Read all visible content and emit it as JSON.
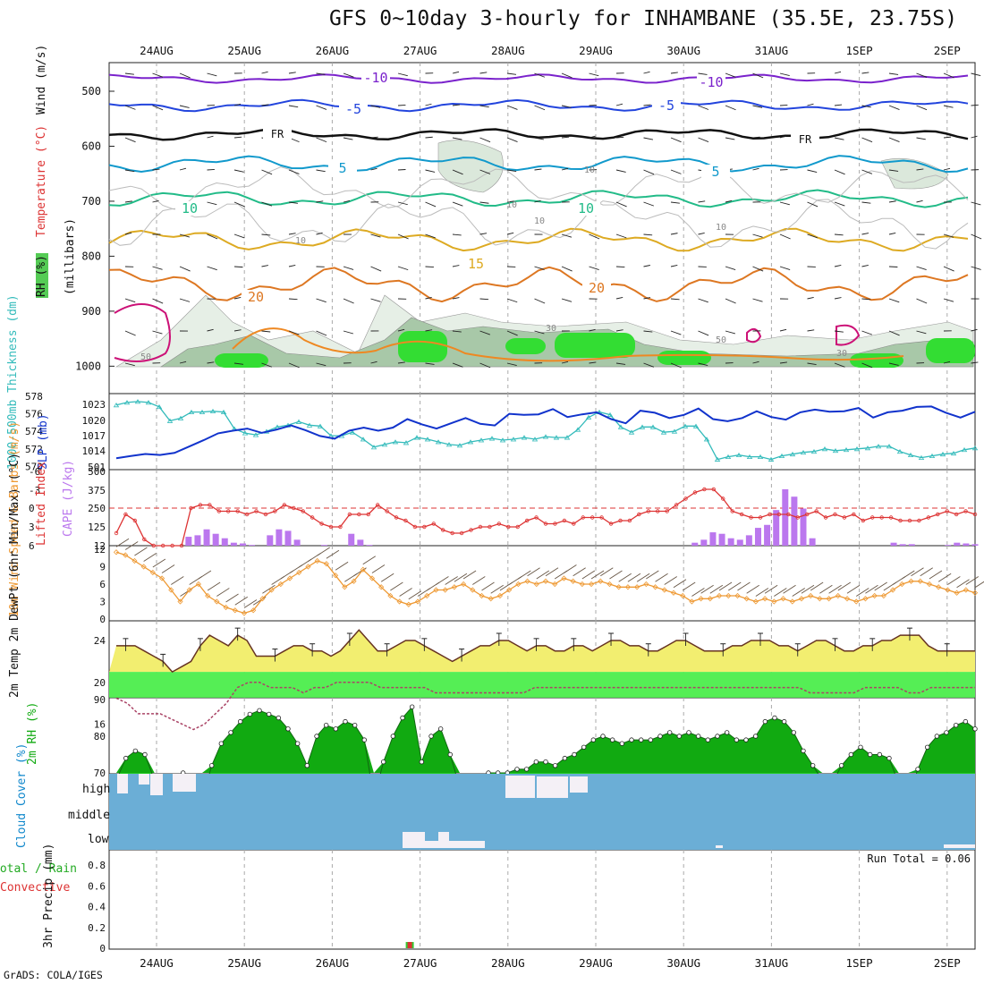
{
  "title": "GFS 0~10day 3-hourly for INHAMBANE (35.5E, 23.75S)",
  "credit": "GrADS: COLA/IGES",
  "dates": [
    "24AUG",
    "25AUG",
    "26AUG",
    "27AUG",
    "28AUG",
    "29AUG",
    "30AUG",
    "31AUG",
    "1SEP",
    "2SEP"
  ],
  "colors": {
    "grid": "#aaaaaa",
    "cyan": "#33bbbb",
    "blue": "#1133cc",
    "cape": "#bb77ee",
    "lift": "#dd3333",
    "wind": "#ee9933",
    "barb": "#665544",
    "tempFill": "#f2ee70",
    "dewLine": "#aa4466",
    "rh": "#22cc22",
    "rhDark": "#11aa11",
    "cloud": "#6baed6",
    "cloudGap": "#f4f0f6"
  },
  "chart_data": [
    {
      "type": "contour",
      "panel": "upper-air",
      "ylabel_parts": [
        "RH (%)",
        "Temperature (°C)",
        "Wind (m/s)",
        "(millibars)"
      ],
      "yticks": [
        "500",
        "600",
        "700",
        "800",
        "900",
        "1000"
      ],
      "contour_labels": [
        {
          "text": "-10",
          "level": "~475mb"
        },
        {
          "text": "-5",
          "level": "~520mb"
        },
        {
          "text": "FR",
          "level": "~570mb"
        },
        {
          "text": "5",
          "level": "~630mb"
        },
        {
          "text": "10",
          "level": "~700mb"
        },
        {
          "text": "15",
          "level": "~790mb"
        },
        {
          "text": "20",
          "level": "~860mb"
        }
      ],
      "gray_labels": [
        "10",
        "10",
        "10",
        "10",
        "10",
        "50",
        "30",
        "50",
        "30"
      ]
    },
    {
      "type": "line",
      "panel": "thickness-slp",
      "ylabel_left": "1000-500mb Thickness (dm)",
      "ylabel_right": "SLP (mb)",
      "yticks_thickness": [
        "578",
        "576",
        "574",
        "572",
        "570"
      ],
      "yticks_slp": [
        "1023",
        "1020",
        "1017",
        "1014",
        "501"
      ],
      "series": [
        {
          "name": "Thickness",
          "values": [
            577.0,
            577.3,
            577.4,
            577.3,
            576.8,
            575.2,
            575.5,
            576.2,
            576.2,
            576.3,
            576.2,
            574.3,
            573.8,
            573.6,
            574.0,
            574.5,
            574.7,
            575.1,
            574.7,
            574.6,
            573.5,
            573.5,
            573.9,
            573.1,
            572.2,
            572.5,
            572.8,
            572.7,
            573.3,
            573.1,
            572.8,
            572.5,
            572.4,
            572.8,
            573.0,
            573.2,
            573.0,
            573.1,
            573.3,
            573.1,
            573.4,
            573.3,
            573.3,
            574.2,
            575.6,
            576.2,
            575.9,
            574.5,
            573.9,
            574.5,
            574.5,
            573.9,
            574.0,
            574.6,
            574.6,
            573.1,
            570.8,
            571.1,
            571.3,
            571.1,
            571.1,
            570.8,
            571.2,
            571.4,
            571.6,
            571.7,
            572.0,
            571.8,
            571.9,
            572.0,
            572.1,
            572.3,
            572.3,
            571.7,
            571.3,
            571.0,
            571.2,
            571.4,
            571.5,
            571.9,
            572.1
          ]
        },
        {
          "name": "SLP",
          "values": [
            1012.8,
            1013.2,
            1013.6,
            1013.4,
            1013.8,
            1015.0,
            1016.2,
            1017.5,
            1018.0,
            1018.4,
            1017.6,
            1018.2,
            1019.0,
            1018.1,
            1017.0,
            1016.5,
            1018.0,
            1018.6,
            1018.0,
            1018.6,
            1020.2,
            1019.2,
            1018.4,
            1019.4,
            1020.4,
            1019.3,
            1019.0,
            1021.2,
            1021.0,
            1021.1,
            1022.1,
            1020.6,
            1021.1,
            1021.5,
            1020.2,
            1019.4,
            1021.8,
            1021.4,
            1020.4,
            1021.0,
            1022.2,
            1020.2,
            1019.8,
            1020.4,
            1021.7,
            1020.6,
            1020.1,
            1021.5,
            1022.0,
            1021.6,
            1021.7,
            1022.3,
            1020.5,
            1021.5,
            1021.8,
            1022.5,
            1022.6,
            1021.4,
            1020.5,
            1021.6
          ]
        }
      ]
    },
    {
      "type": "bar+line",
      "panel": "cape-lifted-index",
      "ylabel_left": "Lifted Index",
      "ylabel_right": "CAPE (J/kg)",
      "yticks_li": [
        "-6",
        "-3",
        "0",
        "3",
        "6"
      ],
      "yticks_cape": [
        "500",
        "375",
        "250",
        "125",
        "12"
      ],
      "series": [
        {
          "name": "CAPE",
          "values": [
            0,
            0,
            0,
            0,
            0,
            0,
            0,
            0,
            60,
            70,
            110,
            80,
            50,
            20,
            15,
            5,
            0,
            70,
            110,
            100,
            40,
            0,
            0,
            5,
            0,
            0,
            80,
            40,
            5,
            0,
            0,
            0,
            0,
            0,
            0,
            0,
            0,
            0,
            0,
            0,
            0,
            0,
            0,
            0,
            0,
            0,
            0,
            0,
            0,
            0,
            0,
            0,
            0,
            0,
            0,
            0,
            0,
            0,
            0,
            0,
            0,
            0,
            0,
            0,
            20,
            40,
            90,
            80,
            50,
            40,
            70,
            120,
            140,
            240,
            380,
            330,
            250,
            50,
            0,
            0,
            0,
            0,
            0,
            0,
            0,
            0,
            20,
            10,
            10,
            0,
            0,
            0,
            5,
            20,
            15,
            10
          ]
        },
        {
          "name": "Lifted Index",
          "values": [
            4,
            1,
            2,
            5,
            6,
            6,
            6,
            6,
            0,
            -0.5,
            -0.5,
            0.5,
            0.5,
            0.5,
            1,
            0.5,
            1,
            0.5,
            -0.5,
            0,
            0.5,
            1.5,
            2.5,
            3,
            3,
            1,
            1,
            1,
            -0.5,
            0.5,
            1.5,
            2,
            3,
            3,
            2.5,
            3.5,
            4,
            4,
            3.5,
            3,
            3,
            2.5,
            3,
            3,
            2,
            1.5,
            2.5,
            2.5,
            2,
            2.5,
            1.5,
            1.5,
            1.5,
            2.5,
            2,
            2,
            1,
            0.5,
            0.5,
            0.5,
            -0.5,
            -1.5,
            -2.5,
            -3,
            -3,
            -1.5,
            0.5,
            1,
            1.5,
            1.5,
            1,
            1,
            1,
            1.5,
            1,
            0.5,
            1.5,
            1,
            1.5,
            1,
            2,
            1.5,
            1.5,
            1.5,
            2,
            2,
            2,
            1.5,
            1,
            0.5,
            1,
            0.5,
            1
          ]
        }
      ]
    },
    {
      "type": "line",
      "panel": "wind",
      "ylabel": "10m Wind Speed & Barbs (m/s)",
      "yticks": [
        "12",
        "9",
        "6",
        "3",
        "0"
      ],
      "series": [
        {
          "name": "10m Wind Speed",
          "values": [
            11.5,
            11,
            10,
            9,
            8,
            7,
            5,
            3,
            5,
            6,
            4,
            3,
            2,
            1.5,
            1,
            1.5,
            3.5,
            5,
            6,
            7,
            8,
            9,
            10,
            9.5,
            7.5,
            5.5,
            6.5,
            8.5,
            7,
            5.5,
            4,
            3,
            2.5,
            3,
            4,
            5,
            5,
            5.5,
            6,
            5,
            4,
            3.5,
            4,
            5,
            6,
            6.5,
            6,
            6.5,
            6,
            7,
            6.5,
            6,
            6,
            6.5,
            6,
            5.5,
            5.5,
            5.5,
            6,
            5.5,
            5,
            4.5,
            4,
            3,
            3.5,
            3.5,
            4,
            4,
            4,
            3.5,
            3,
            3.5,
            3,
            3.5,
            3,
            3.5,
            4,
            3.5,
            3.5,
            4,
            3.5,
            3,
            3.5,
            4,
            4,
            5,
            6,
            6.5,
            6.5,
            6,
            5.5,
            5,
            4.5,
            5,
            4.5
          ]
        }
      ]
    },
    {
      "type": "area+line",
      "panel": "temperature",
      "ylabel": "2m Temp 2m DewPt (6hr Min/Max) (°C)",
      "yticks": [
        "24",
        "20",
        "16"
      ],
      "series": [
        {
          "name": "2m Temp",
          "values": [
            23.5,
            23.5,
            23.5,
            23,
            22.5,
            22,
            21,
            21.5,
            22,
            23.5,
            24.5,
            24,
            23.5,
            24.5,
            24,
            22.5,
            22.5,
            22.5,
            23,
            23.5,
            23.5,
            23,
            23,
            22.5,
            23,
            24,
            25,
            24,
            23,
            23,
            23.5,
            24,
            24,
            23.5,
            23,
            22.5,
            22,
            22.5,
            23,
            23.5,
            23.5,
            24,
            24,
            23.5,
            23,
            23.5,
            23.5,
            23,
            23,
            23.5,
            23.5,
            23,
            23.5,
            24,
            24,
            23.5,
            23.5,
            23,
            23,
            23.5,
            24,
            24,
            23.5,
            23,
            23,
            23,
            23.5,
            23.5,
            24,
            24,
            24,
            23.5,
            23.5,
            23,
            23.5,
            24,
            24,
            23.5,
            23,
            23,
            23.5,
            23.5,
            24,
            24,
            24.5,
            24.5,
            24.5,
            23.5,
            23,
            23,
            23,
            23,
            23
          ]
        },
        {
          "name": "2m DewPt",
          "values": [
            18.5,
            18,
            17,
            17,
            17,
            16.5,
            16,
            15.5,
            16,
            17,
            18,
            19.5,
            20,
            20,
            19.5,
            19.5,
            19.5,
            19,
            19.5,
            19.5,
            20,
            20,
            20,
            20,
            19.5,
            19.5,
            19.5,
            19.5,
            19.5,
            19,
            19,
            19,
            19,
            19,
            19,
            19,
            19,
            19,
            19.5,
            19.5,
            19.5,
            19.5,
            19.5,
            19.5,
            19.5,
            19.5,
            19.5,
            19.5,
            19.5,
            19.5,
            19.5,
            19.5,
            19.5,
            19.5,
            19.5,
            19.5,
            19.5,
            19.5,
            19.5,
            19.5,
            19.5,
            19.5,
            19.5,
            19,
            19,
            19,
            19,
            19,
            19.5,
            19.5,
            19.5,
            19.5,
            19,
            19,
            19.5,
            19.5,
            19.5,
            19.5,
            19.5
          ]
        }
      ]
    },
    {
      "type": "area",
      "panel": "rh",
      "ylabel": "2m RH (%)",
      "yticks": [
        "90",
        "80",
        "70"
      ],
      "series": [
        {
          "name": "2m RH",
          "values": [
            68,
            74,
            76,
            75,
            68,
            69,
            68,
            70,
            64,
            63,
            72,
            78,
            81,
            84,
            86,
            87,
            86,
            85,
            82,
            78,
            72,
            80,
            83,
            82,
            84,
            83,
            79,
            63,
            73,
            80,
            85,
            88,
            73,
            80,
            82,
            75,
            66,
            68,
            68,
            70,
            70,
            70,
            71,
            71,
            73,
            73,
            72,
            74,
            75,
            77,
            79,
            80,
            79,
            78,
            79,
            79,
            79,
            80,
            81,
            80,
            81,
            80,
            79,
            80,
            81,
            79,
            79,
            80,
            84,
            85,
            84,
            81,
            76,
            72,
            68,
            67,
            72,
            75,
            77,
            75,
            75,
            74,
            67,
            63,
            71,
            77,
            80,
            81,
            83,
            84,
            82
          ]
        }
      ]
    },
    {
      "type": "area",
      "panel": "cloud-cover",
      "ylabel": "Cloud Cover (%)",
      "ylabels_levels": [
        "high",
        "middle",
        "low"
      ]
    },
    {
      "type": "bar",
      "panel": "precip",
      "ylabel": "3hr Precip (mm)",
      "series_labels": [
        "Total / Rain",
        "Convective"
      ],
      "yticks": [
        "0.8",
        "0.6",
        "0.4",
        "0.2",
        "0"
      ],
      "annotation": "Run Total = 0.06",
      "series": [
        {
          "name": "Total / Rain",
          "values": [
            {
              "date": "27AUG",
              "value": 0.06
            }
          ]
        }
      ]
    }
  ]
}
